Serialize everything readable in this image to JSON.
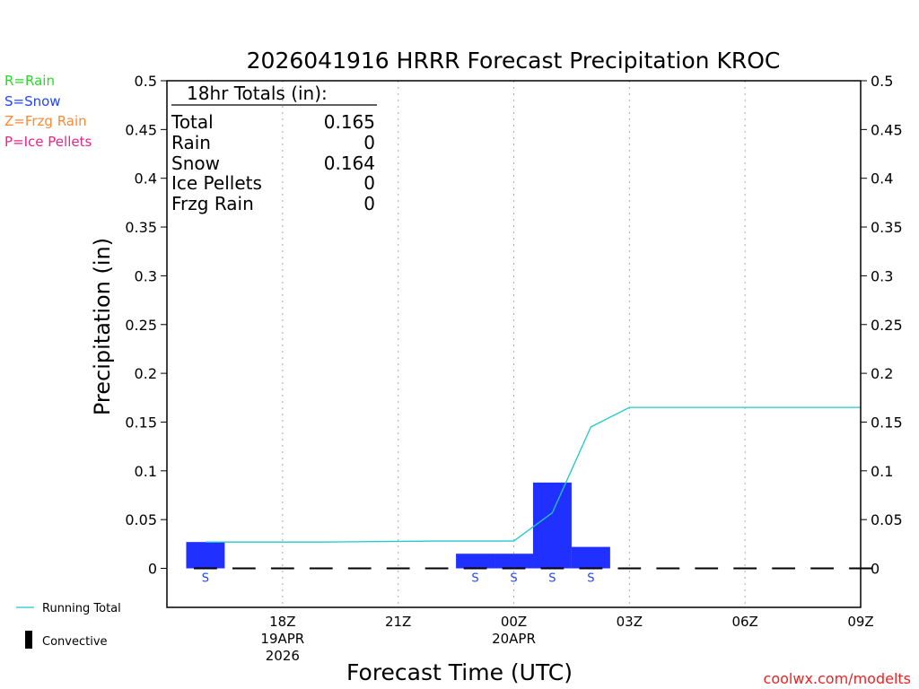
{
  "chart_data": {
    "type": "bar",
    "title": "2026041916 HRRR Forecast Precipitation KROC",
    "xlabel": "Forecast Time (UTC)",
    "ylabel": "Precipitation (in)",
    "ylim": [
      -0.04,
      0.5
    ],
    "xlim_hours": [
      -2.0,
      16.0
    ],
    "y_ticks": [
      "0",
      "0.05",
      "0.1",
      "0.15",
      "0.2",
      "0.25",
      "0.3",
      "0.35",
      "0.4",
      "0.45",
      "0.5"
    ],
    "y_tick_values": [
      0,
      0.05,
      0.1,
      0.15,
      0.2,
      0.25,
      0.3,
      0.35,
      0.4,
      0.45,
      0.5
    ],
    "x_ticks": [
      {
        "hour": 1,
        "lines": [
          "18Z",
          "19APR",
          "2026"
        ]
      },
      {
        "hour": 4,
        "lines": [
          "21Z"
        ]
      },
      {
        "hour": 7,
        "lines": [
          "00Z",
          "20APR"
        ]
      },
      {
        "hour": 10,
        "lines": [
          "03Z"
        ]
      },
      {
        "hour": 13,
        "lines": [
          "06Z"
        ]
      },
      {
        "hour": 16,
        "lines": [
          "09Z"
        ]
      }
    ],
    "bars": [
      {
        "hour": -1,
        "value": 0.027,
        "ptype": "S"
      },
      {
        "hour": 6,
        "value": 0.015,
        "ptype": "S"
      },
      {
        "hour": 7,
        "value": 0.015,
        "ptype": "S"
      },
      {
        "hour": 8,
        "value": 0.088,
        "ptype": "S"
      },
      {
        "hour": 9,
        "value": 0.022,
        "ptype": "S"
      }
    ],
    "running_total": {
      "name": "Running Total",
      "x": [
        -1,
        2,
        5,
        7,
        8,
        9,
        10,
        16
      ],
      "y": [
        0.027,
        0.027,
        0.028,
        0.028,
        0.057,
        0.145,
        0.165,
        0.165
      ]
    },
    "convective_hours": [
      -1,
      0,
      1,
      2,
      3,
      4,
      5,
      6,
      7,
      8,
      9,
      10,
      11,
      12,
      13,
      14,
      15,
      16
    ],
    "convective_values": [
      0,
      0,
      0,
      0,
      0,
      0,
      0,
      0,
      0,
      0,
      0,
      0,
      0,
      0,
      0,
      0,
      0,
      0
    ],
    "totals_box": {
      "header": "18hr Totals (in):",
      "rows": [
        {
          "label": "Total",
          "value": "0.165"
        },
        {
          "label": "Rain",
          "value": "0"
        },
        {
          "label": "Snow",
          "value": "0.164"
        },
        {
          "label": "Ice Pellets",
          "value": "0"
        },
        {
          "label": "Frzg Rain",
          "value": "0"
        }
      ]
    },
    "ptype_legend": [
      {
        "text": "R=Rain",
        "color": "#22dd22"
      },
      {
        "text": "S=Snow",
        "color": "#2244ff"
      },
      {
        "text": "Z=Frzg Rain",
        "color": "#ff8833"
      },
      {
        "text": "P=Ice Pellets",
        "color": "#ee2288"
      }
    ],
    "series_legend": {
      "running_total_label": "Running Total",
      "convective_label": "Convective"
    },
    "colors": {
      "bar": "#2030ff",
      "running_total": "#22c8c8",
      "convective": "#000000",
      "ptype_label": "#2244ff",
      "credit": "#ee2222"
    },
    "credit": "coolwx.com/modelts"
  }
}
